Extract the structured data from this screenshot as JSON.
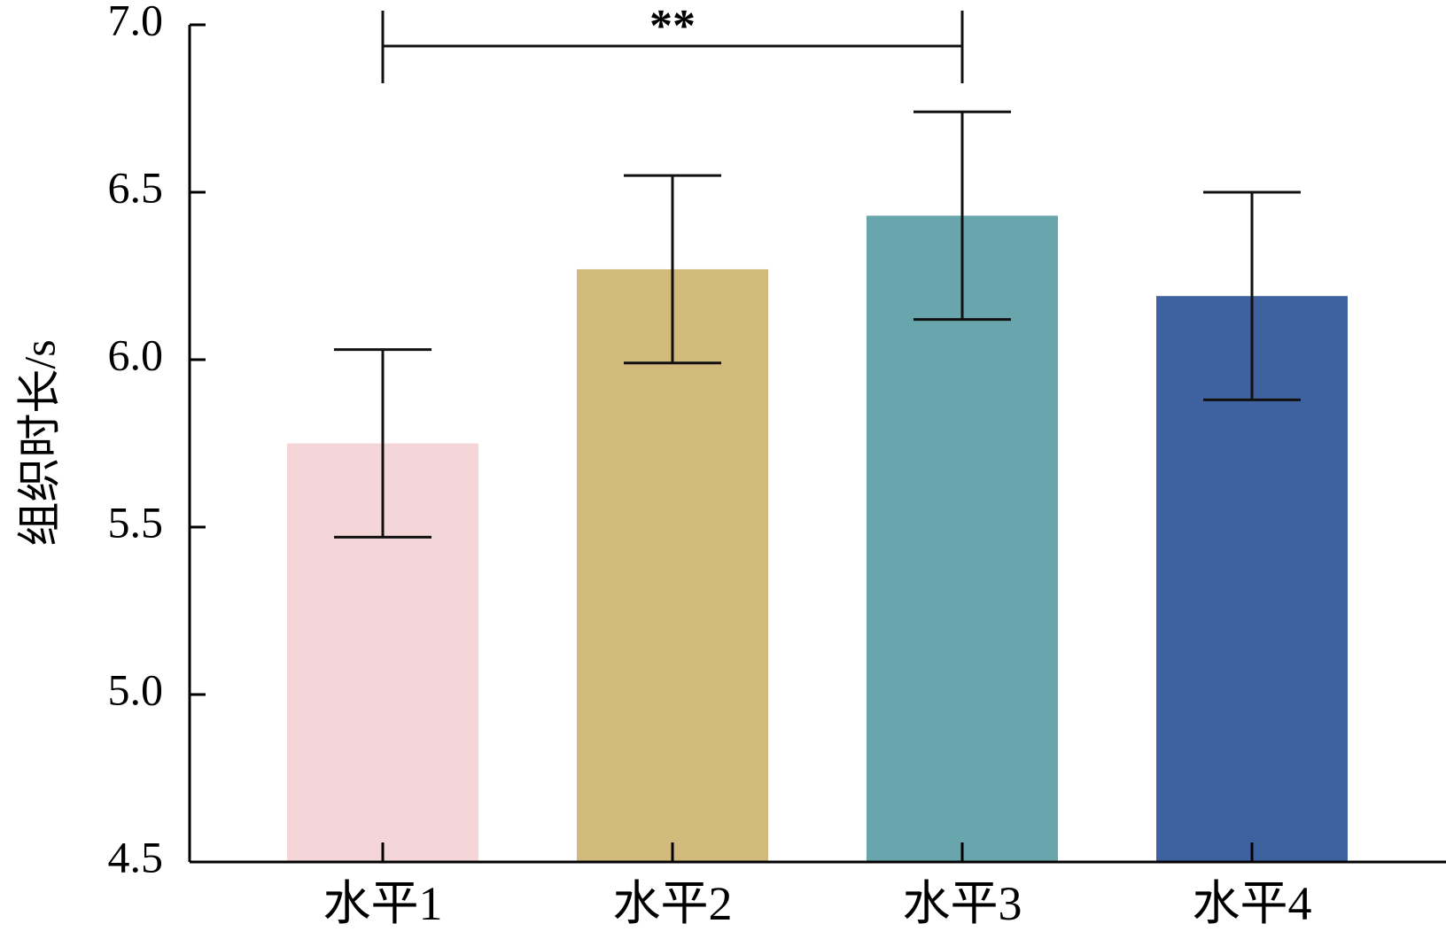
{
  "chart_data": {
    "type": "bar",
    "ylabel": "组织时长/s",
    "xlabel": "",
    "ylim": [
      4.5,
      7.0
    ],
    "yticks": [
      4.5,
      5.0,
      5.5,
      6.0,
      6.5,
      7.0
    ],
    "ytick_labels": [
      "4.5",
      "5.0",
      "5.5",
      "6.0",
      "6.5",
      "7.0"
    ],
    "categories": [
      "水平1",
      "水平2",
      "水平3",
      "水平4"
    ],
    "values": [
      5.75,
      6.27,
      6.43,
      6.19
    ],
    "errors": [
      0.28,
      0.28,
      0.31,
      0.31
    ],
    "colors": [
      "#f4d6d8",
      "#d2b97c",
      "#69a5ac",
      "#3e62a0"
    ],
    "grid": false,
    "significance": [
      {
        "from": 0,
        "to": 2,
        "label": "**"
      }
    ]
  }
}
